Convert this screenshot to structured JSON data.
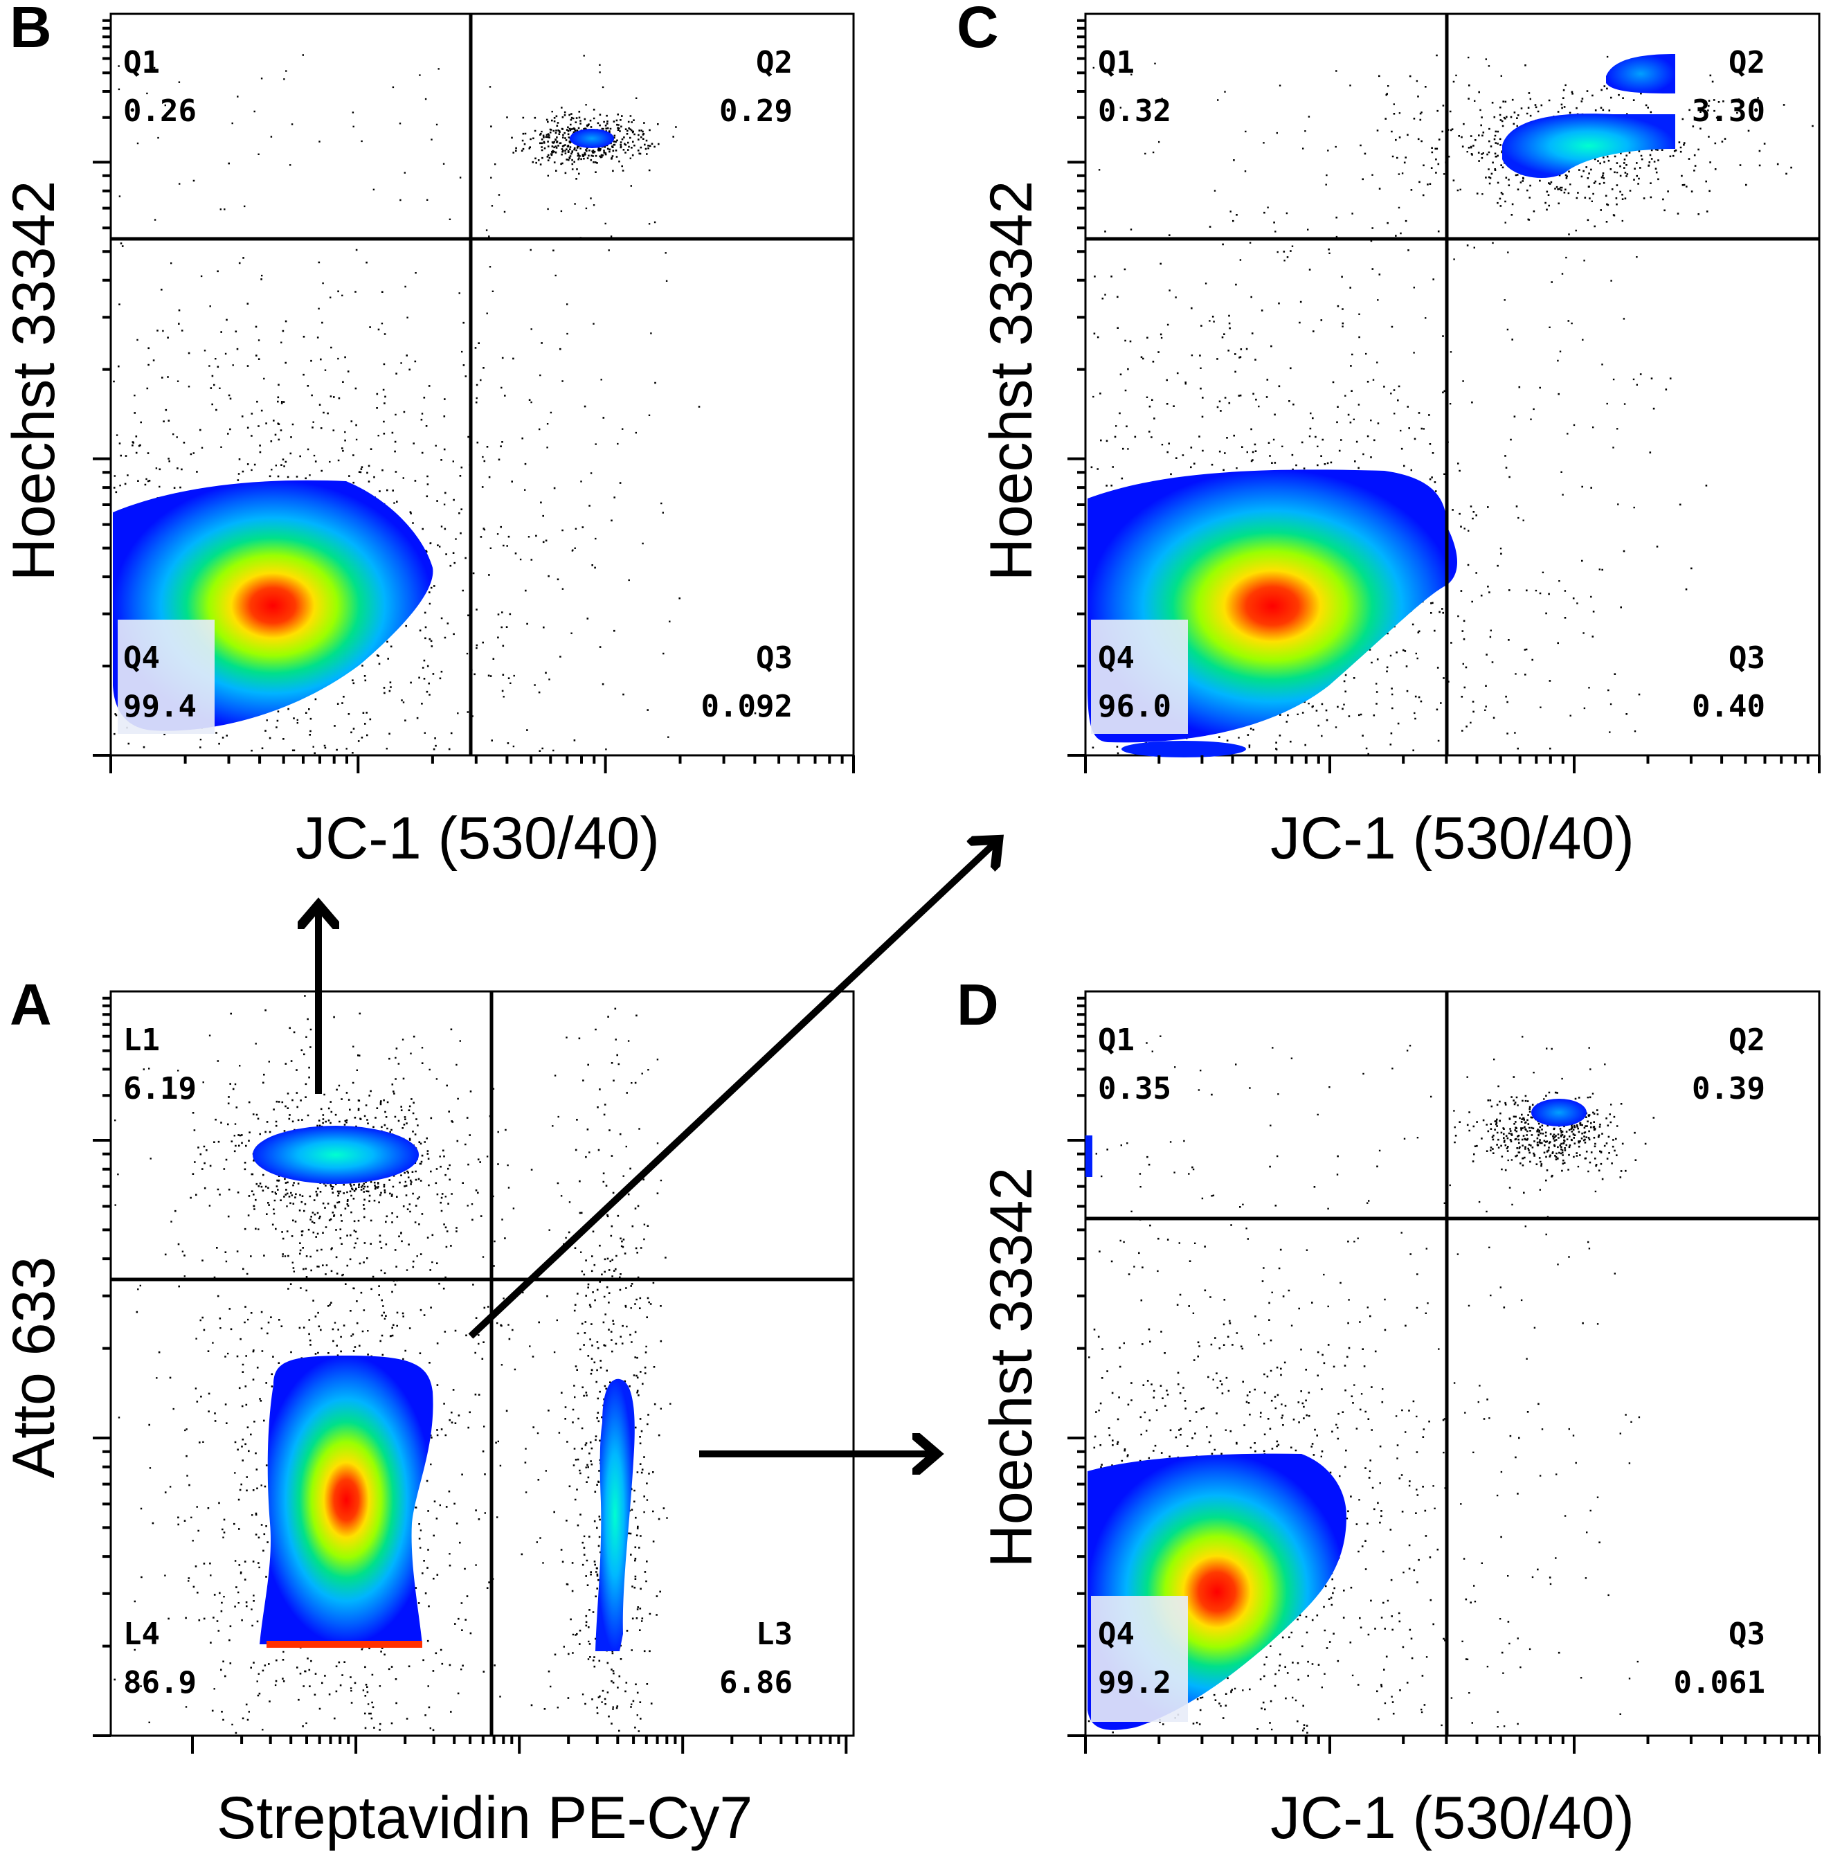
{
  "chart_data": [
    {
      "panel": "A",
      "type": "scatter",
      "xlabel": "Streptavidin PE-Cy7",
      "ylabel": "Atto 633",
      "gates": [
        {
          "name": "L1",
          "value": "6.19",
          "corner": "top-left"
        },
        {
          "name": "L4",
          "value": "86.9",
          "corner": "bottom-left"
        },
        {
          "name": "L3",
          "value": "6.86",
          "corner": "bottom-right"
        }
      ],
      "populations": [
        {
          "name": "L1 cluster",
          "x": 0.31,
          "y": 0.77,
          "sx": 0.06,
          "sy": 0.035,
          "peak": 0.55
        },
        {
          "name": "L4 cluster",
          "x": 0.3,
          "y": 0.38,
          "sx": 0.075,
          "sy": 0.2,
          "peak": 1.0
        },
        {
          "name": "L3 cluster",
          "x": 0.67,
          "y": 0.36,
          "sx": 0.022,
          "sy": 0.18,
          "peak": 0.45
        }
      ]
    },
    {
      "panel": "B",
      "type": "scatter",
      "xlabel": "JC-1 (530/40)",
      "ylabel": "Hoechst 33342",
      "gates": [
        {
          "name": "Q1",
          "value": "0.26",
          "corner": "top-left"
        },
        {
          "name": "Q2",
          "value": "0.29",
          "corner": "top-right"
        },
        {
          "name": "Q3",
          "value": "0.092",
          "corner": "bottom-right"
        },
        {
          "name": "Q4",
          "value": "99.4",
          "corner": "bottom-left"
        }
      ],
      "populations": [
        {
          "name": "Q4 cluster",
          "x": 0.22,
          "y": 0.24,
          "sx": 0.14,
          "sy": 0.14,
          "peak": 1.0
        },
        {
          "name": "Q2 cluster",
          "x": 0.64,
          "y": 0.83,
          "sx": 0.03,
          "sy": 0.012,
          "peak": 0.35
        }
      ]
    },
    {
      "panel": "C",
      "type": "scatter",
      "xlabel": "JC-1 (530/40)",
      "ylabel": "Hoechst 33342",
      "gates": [
        {
          "name": "Q1",
          "value": "0.32",
          "corner": "top-left"
        },
        {
          "name": "Q2",
          "value": "3.30",
          "corner": "top-right"
        },
        {
          "name": "Q3",
          "value": "0.40",
          "corner": "bottom-right"
        },
        {
          "name": "Q4",
          "value": "96.0",
          "corner": "bottom-left"
        }
      ],
      "populations": [
        {
          "name": "Q4 cluster",
          "x": 0.22,
          "y": 0.24,
          "sx": 0.16,
          "sy": 0.16,
          "peak": 1.0
        },
        {
          "name": "Q2 cluster",
          "x": 0.66,
          "y": 0.82,
          "sx": 0.08,
          "sy": 0.03,
          "peak": 0.5
        }
      ]
    },
    {
      "panel": "D",
      "type": "scatter",
      "xlabel": "JC-1 (530/40)",
      "ylabel": "Hoechst 33342",
      "gates": [
        {
          "name": "Q1",
          "value": "0.35",
          "corner": "top-left"
        },
        {
          "name": "Q2",
          "value": "0.39",
          "corner": "top-right"
        },
        {
          "name": "Q3",
          "value": "0.061",
          "corner": "bottom-right"
        },
        {
          "name": "Q4",
          "value": "99.2",
          "corner": "bottom-left"
        }
      ],
      "populations": [
        {
          "name": "Q4 cluster",
          "x": 0.16,
          "y": 0.27,
          "sx": 0.12,
          "sy": 0.14,
          "peak": 1.0
        },
        {
          "name": "Q2 cluster",
          "x": 0.63,
          "y": 0.81,
          "sx": 0.035,
          "sy": 0.018,
          "peak": 0.35
        }
      ]
    }
  ],
  "arrows": [
    {
      "from": "A",
      "to": "B"
    },
    {
      "from": "A",
      "to": "C"
    },
    {
      "from": "A",
      "to": "D"
    }
  ],
  "colors": {
    "low": "#0000ff",
    "mid": "#00ff80",
    "high": "#ffff00",
    "peak": "#ff0000",
    "outlier": "#000000",
    "axis": "#000000"
  }
}
